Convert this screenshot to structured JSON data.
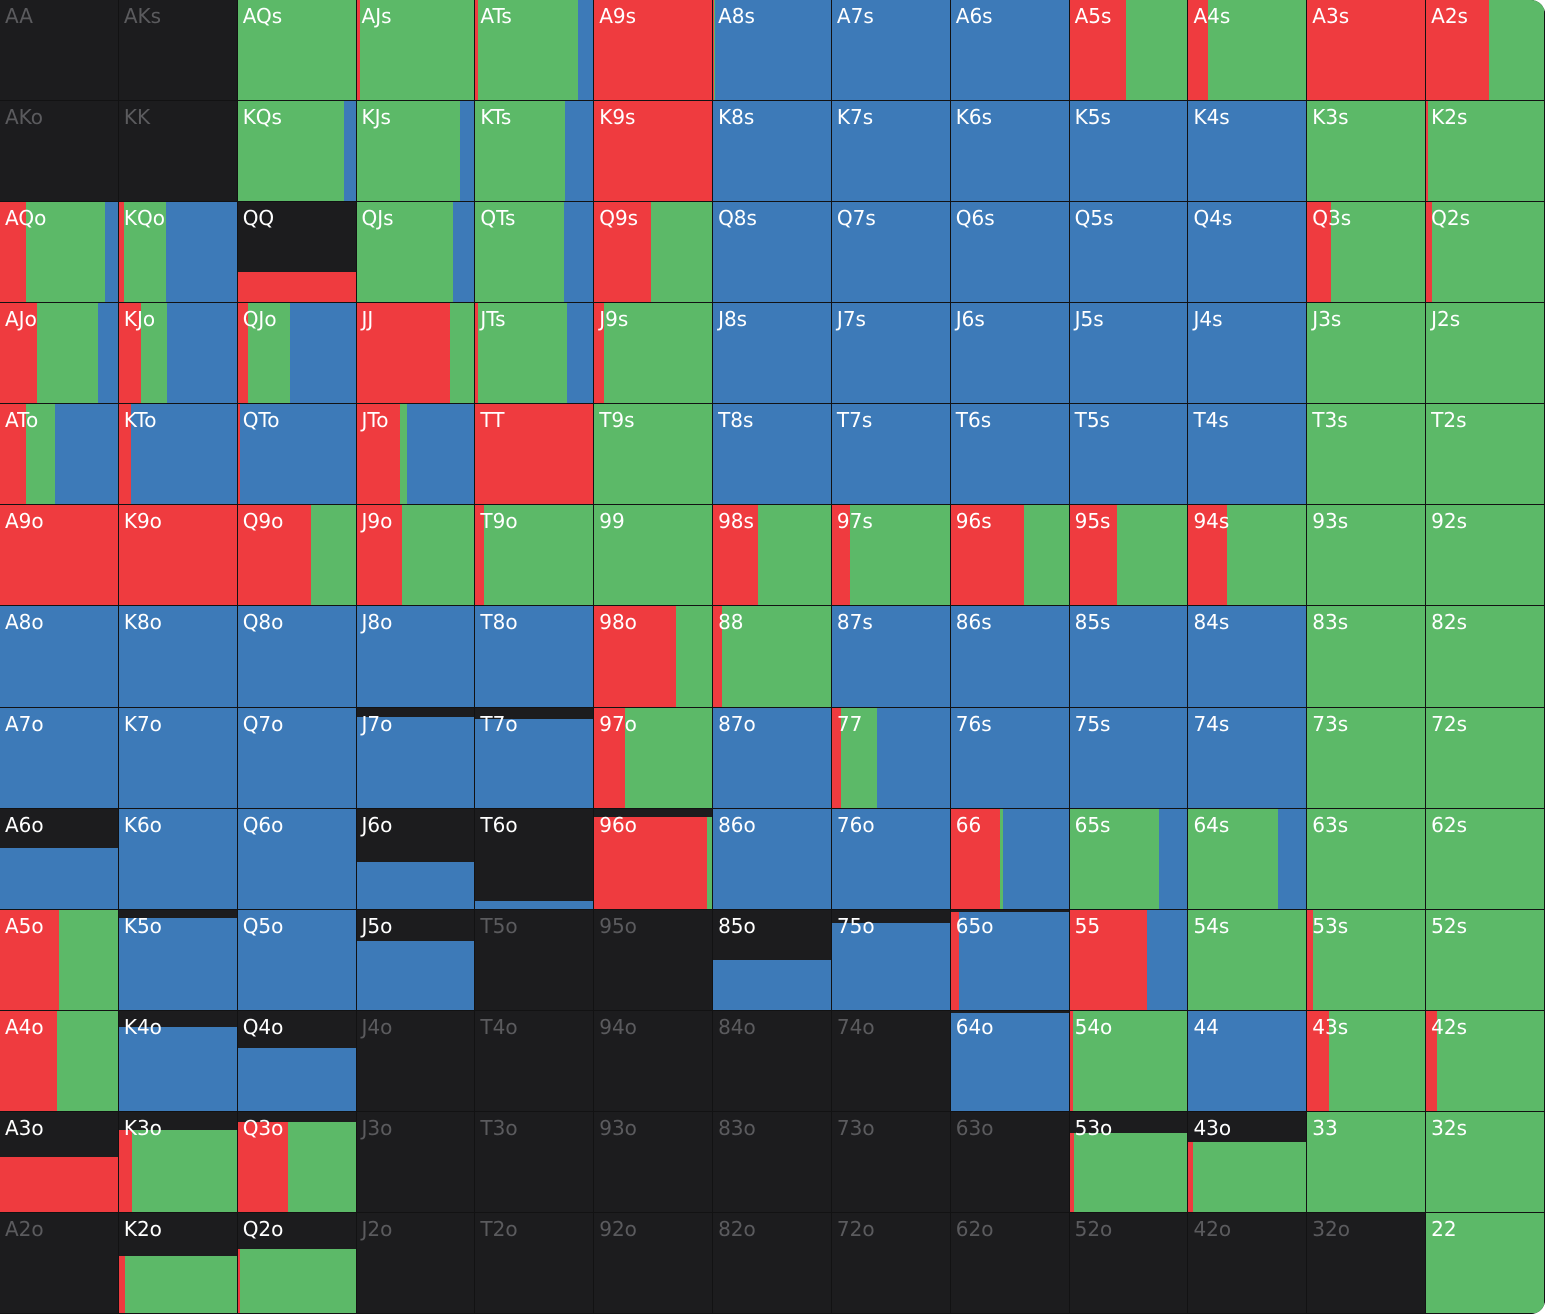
{
  "colors": {
    "empty": "#1c1c1e",
    "raise": "#ef3b3f",
    "call": "#5cb968",
    "fold": "#3d7ab8",
    "label": "#ffffff",
    "label_dim": "#5b5b5e"
  },
  "legend": "each cell fill: height = share of combos played; split into raise (red) / call (green) / fold (blue) fractions",
  "rows": [
    [
      {
        "hand": "AA",
        "h": 0,
        "r": 0,
        "c": 0,
        "f": 0
      },
      {
        "hand": "AKs",
        "h": 0,
        "r": 0,
        "c": 0,
        "f": 0
      },
      {
        "hand": "AQs",
        "h": 1,
        "r": 0,
        "c": 1,
        "f": 0
      },
      {
        "hand": "AJs",
        "h": 1,
        "r": 0.03,
        "c": 0.97,
        "f": 0
      },
      {
        "hand": "ATs",
        "h": 1,
        "r": 0.02,
        "c": 0.85,
        "f": 0.13
      },
      {
        "hand": "A9s",
        "h": 1,
        "r": 1,
        "c": 0,
        "f": 0
      },
      {
        "hand": "A8s",
        "h": 1,
        "r": 0.01,
        "c": 0.01,
        "f": 0.98
      },
      {
        "hand": "A7s",
        "h": 1,
        "r": 0,
        "c": 0,
        "f": 1
      },
      {
        "hand": "A6s",
        "h": 1,
        "r": 0,
        "c": 0,
        "f": 1
      },
      {
        "hand": "A5s",
        "h": 1,
        "r": 0.48,
        "c": 0.52,
        "f": 0
      },
      {
        "hand": "A4s",
        "h": 1,
        "r": 0.17,
        "c": 0.83,
        "f": 0
      },
      {
        "hand": "A3s",
        "h": 1,
        "r": 1,
        "c": 0,
        "f": 0
      },
      {
        "hand": "A2s",
        "h": 1,
        "r": 0.53,
        "c": 0.47,
        "f": 0
      }
    ],
    [
      {
        "hand": "AKo",
        "h": 0,
        "r": 0,
        "c": 0,
        "f": 0
      },
      {
        "hand": "KK",
        "h": 0,
        "r": 0,
        "c": 0,
        "f": 0
      },
      {
        "hand": "KQs",
        "h": 1,
        "r": 0,
        "c": 0.9,
        "f": 0.1
      },
      {
        "hand": "KJs",
        "h": 1,
        "r": 0,
        "c": 0.88,
        "f": 0.12
      },
      {
        "hand": "KTs",
        "h": 1,
        "r": 0,
        "c": 0.76,
        "f": 0.24
      },
      {
        "hand": "K9s",
        "h": 1,
        "r": 1,
        "c": 0,
        "f": 0
      },
      {
        "hand": "K8s",
        "h": 1,
        "r": 0,
        "c": 0,
        "f": 1
      },
      {
        "hand": "K7s",
        "h": 1,
        "r": 0,
        "c": 0,
        "f": 1
      },
      {
        "hand": "K6s",
        "h": 1,
        "r": 0,
        "c": 0,
        "f": 1
      },
      {
        "hand": "K5s",
        "h": 1,
        "r": 0,
        "c": 0,
        "f": 1
      },
      {
        "hand": "K4s",
        "h": 1,
        "r": 0,
        "c": 0,
        "f": 1
      },
      {
        "hand": "K3s",
        "h": 1,
        "r": 0,
        "c": 1,
        "f": 0
      },
      {
        "hand": "K2s",
        "h": 1,
        "r": 0.02,
        "c": 0.98,
        "f": 0
      }
    ],
    [
      {
        "hand": "AQo",
        "h": 1,
        "r": 0.22,
        "c": 0.67,
        "f": 0.11
      },
      {
        "hand": "KQo",
        "h": 1,
        "r": 0.04,
        "c": 0.36,
        "f": 0.6
      },
      {
        "hand": "QQ",
        "h": 0.3,
        "r": 1,
        "c": 0,
        "f": 0
      },
      {
        "hand": "QJs",
        "h": 1,
        "r": 0,
        "c": 0.82,
        "f": 0.18
      },
      {
        "hand": "QTs",
        "h": 1,
        "r": 0,
        "c": 0.75,
        "f": 0.25
      },
      {
        "hand": "Q9s",
        "h": 1,
        "r": 0.48,
        "c": 0.52,
        "f": 0
      },
      {
        "hand": "Q8s",
        "h": 1,
        "r": 0,
        "c": 0,
        "f": 1
      },
      {
        "hand": "Q7s",
        "h": 1,
        "r": 0,
        "c": 0,
        "f": 1
      },
      {
        "hand": "Q6s",
        "h": 1,
        "r": 0,
        "c": 0,
        "f": 1
      },
      {
        "hand": "Q5s",
        "h": 1,
        "r": 0,
        "c": 0,
        "f": 1
      },
      {
        "hand": "Q4s",
        "h": 1,
        "r": 0,
        "c": 0,
        "f": 1
      },
      {
        "hand": "Q3s",
        "h": 1,
        "r": 0.2,
        "c": 0.8,
        "f": 0
      },
      {
        "hand": "Q2s",
        "h": 1,
        "r": 0.05,
        "c": 0.95,
        "f": 0
      }
    ],
    [
      {
        "hand": "AJo",
        "h": 1,
        "r": 0.31,
        "c": 0.52,
        "f": 0.17
      },
      {
        "hand": "KJo",
        "h": 1,
        "r": 0.19,
        "c": 0.22,
        "f": 0.59
      },
      {
        "hand": "QJo",
        "h": 1,
        "r": 0.09,
        "c": 0.35,
        "f": 0.56
      },
      {
        "hand": "JJ",
        "h": 1,
        "r": 0.79,
        "c": 0.21,
        "f": 0
      },
      {
        "hand": "JTs",
        "h": 1,
        "r": 0.02,
        "c": 0.76,
        "f": 0.22
      },
      {
        "hand": "J9s",
        "h": 1,
        "r": 0.08,
        "c": 0.92,
        "f": 0
      },
      {
        "hand": "J8s",
        "h": 1,
        "r": 0,
        "c": 0,
        "f": 1
      },
      {
        "hand": "J7s",
        "h": 1,
        "r": 0,
        "c": 0,
        "f": 1
      },
      {
        "hand": "J6s",
        "h": 1,
        "r": 0,
        "c": 0,
        "f": 1
      },
      {
        "hand": "J5s",
        "h": 1,
        "r": 0,
        "c": 0,
        "f": 1
      },
      {
        "hand": "J4s",
        "h": 1,
        "r": 0,
        "c": 0,
        "f": 1
      },
      {
        "hand": "J3s",
        "h": 1,
        "r": 0,
        "c": 1,
        "f": 0
      },
      {
        "hand": "J2s",
        "h": 1,
        "r": 0,
        "c": 1,
        "f": 0
      }
    ],
    [
      {
        "hand": "ATo",
        "h": 1,
        "r": 0.22,
        "c": 0.25,
        "f": 0.53
      },
      {
        "hand": "KTo",
        "h": 1,
        "r": 0.1,
        "c": 0,
        "f": 0.9
      },
      {
        "hand": "QTo",
        "h": 1,
        "r": 0.02,
        "c": 0,
        "f": 0.98
      },
      {
        "hand": "JTo",
        "h": 1,
        "r": 0.37,
        "c": 0.06,
        "f": 0.57
      },
      {
        "hand": "TT",
        "h": 1,
        "r": 1,
        "c": 0,
        "f": 0
      },
      {
        "hand": "T9s",
        "h": 1,
        "r": 0,
        "c": 1,
        "f": 0
      },
      {
        "hand": "T8s",
        "h": 1,
        "r": 0,
        "c": 0,
        "f": 1
      },
      {
        "hand": "T7s",
        "h": 1,
        "r": 0,
        "c": 0,
        "f": 1
      },
      {
        "hand": "T6s",
        "h": 1,
        "r": 0,
        "c": 0,
        "f": 1
      },
      {
        "hand": "T5s",
        "h": 1,
        "r": 0,
        "c": 0,
        "f": 1
      },
      {
        "hand": "T4s",
        "h": 1,
        "r": 0,
        "c": 0,
        "f": 1
      },
      {
        "hand": "T3s",
        "h": 1,
        "r": 0,
        "c": 1,
        "f": 0
      },
      {
        "hand": "T2s",
        "h": 1,
        "r": 0,
        "c": 1,
        "f": 0
      }
    ],
    [
      {
        "hand": "A9o",
        "h": 1,
        "r": 1,
        "c": 0,
        "f": 0
      },
      {
        "hand": "K9o",
        "h": 1,
        "r": 1,
        "c": 0,
        "f": 0
      },
      {
        "hand": "Q9o",
        "h": 1,
        "r": 0.62,
        "c": 0.38,
        "f": 0
      },
      {
        "hand": "J9o",
        "h": 1,
        "r": 0.39,
        "c": 0.61,
        "f": 0
      },
      {
        "hand": "T9o",
        "h": 1,
        "r": 0.07,
        "c": 0.93,
        "f": 0
      },
      {
        "hand": "99",
        "h": 1,
        "r": 0,
        "c": 1,
        "f": 0
      },
      {
        "hand": "98s",
        "h": 1,
        "r": 0.38,
        "c": 0.62,
        "f": 0
      },
      {
        "hand": "97s",
        "h": 1,
        "r": 0.15,
        "c": 0.85,
        "f": 0
      },
      {
        "hand": "96s",
        "h": 1,
        "r": 0.62,
        "c": 0.38,
        "f": 0
      },
      {
        "hand": "95s",
        "h": 1,
        "r": 0.4,
        "c": 0.6,
        "f": 0
      },
      {
        "hand": "94s",
        "h": 1,
        "r": 0.33,
        "c": 0.67,
        "f": 0
      },
      {
        "hand": "93s",
        "h": 1,
        "r": 0,
        "c": 1,
        "f": 0
      },
      {
        "hand": "92s",
        "h": 1,
        "r": 0,
        "c": 1,
        "f": 0
      }
    ],
    [
      {
        "hand": "A8o",
        "h": 1,
        "r": 0,
        "c": 0,
        "f": 1
      },
      {
        "hand": "K8o",
        "h": 1,
        "r": 0,
        "c": 0,
        "f": 1
      },
      {
        "hand": "Q8o",
        "h": 1,
        "r": 0,
        "c": 0,
        "f": 1
      },
      {
        "hand": "J8o",
        "h": 1,
        "r": 0,
        "c": 0,
        "f": 1
      },
      {
        "hand": "T8o",
        "h": 1,
        "r": 0,
        "c": 0,
        "f": 1
      },
      {
        "hand": "98o",
        "h": 1,
        "r": 0.69,
        "c": 0.31,
        "f": 0
      },
      {
        "hand": "88",
        "h": 1,
        "r": 0.08,
        "c": 0.92,
        "f": 0
      },
      {
        "hand": "87s",
        "h": 1,
        "r": 0,
        "c": 0,
        "f": 1
      },
      {
        "hand": "86s",
        "h": 1,
        "r": 0,
        "c": 0,
        "f": 1
      },
      {
        "hand": "85s",
        "h": 1,
        "r": 0,
        "c": 0,
        "f": 1
      },
      {
        "hand": "84s",
        "h": 1,
        "r": 0,
        "c": 0,
        "f": 1
      },
      {
        "hand": "83s",
        "h": 1,
        "r": 0,
        "c": 1,
        "f": 0
      },
      {
        "hand": "82s",
        "h": 1,
        "r": 0,
        "c": 1,
        "f": 0
      }
    ],
    [
      {
        "hand": "A7o",
        "h": 1,
        "r": 0,
        "c": 0,
        "f": 1
      },
      {
        "hand": "K7o",
        "h": 1,
        "r": 0,
        "c": 0,
        "f": 1
      },
      {
        "hand": "Q7o",
        "h": 1,
        "r": 0,
        "c": 0,
        "f": 1
      },
      {
        "hand": "J7o",
        "h": 0.91,
        "r": 0,
        "c": 0,
        "f": 1
      },
      {
        "hand": "T7o",
        "h": 0.89,
        "r": 0,
        "c": 0,
        "f": 1
      },
      {
        "hand": "97o",
        "h": 1,
        "r": 0.26,
        "c": 0.74,
        "f": 0
      },
      {
        "hand": "87o",
        "h": 1,
        "r": 0,
        "c": 0,
        "f": 1
      },
      {
        "hand": "77",
        "h": 1,
        "r": 0.08,
        "c": 0.3,
        "f": 0.62
      },
      {
        "hand": "76s",
        "h": 1,
        "r": 0,
        "c": 0,
        "f": 1
      },
      {
        "hand": "75s",
        "h": 1,
        "r": 0,
        "c": 0,
        "f": 1
      },
      {
        "hand": "74s",
        "h": 1,
        "r": 0,
        "c": 0,
        "f": 1
      },
      {
        "hand": "73s",
        "h": 1,
        "r": 0,
        "c": 1,
        "f": 0
      },
      {
        "hand": "72s",
        "h": 1,
        "r": 0,
        "c": 1,
        "f": 0
      }
    ],
    [
      {
        "hand": "A6o",
        "h": 0.61,
        "r": 0,
        "c": 0,
        "f": 1
      },
      {
        "hand": "K6o",
        "h": 1,
        "r": 0,
        "c": 0,
        "f": 1
      },
      {
        "hand": "Q6o",
        "h": 1,
        "r": 0,
        "c": 0,
        "f": 1
      },
      {
        "hand": "J6o",
        "h": 0.47,
        "r": 0,
        "c": 0,
        "f": 1
      },
      {
        "hand": "T6o",
        "h": 0.08,
        "r": 0,
        "c": 0,
        "f": 1
      },
      {
        "hand": "96o",
        "h": 0.92,
        "r": 0.96,
        "c": 0.04,
        "f": 0
      },
      {
        "hand": "86o",
        "h": 1,
        "r": 0,
        "c": 0,
        "f": 1
      },
      {
        "hand": "76o",
        "h": 1,
        "r": 0,
        "c": 0,
        "f": 1
      },
      {
        "hand": "66",
        "h": 1,
        "r": 0.42,
        "c": 0.02,
        "f": 0.56
      },
      {
        "hand": "65s",
        "h": 1,
        "r": 0,
        "c": 0.76,
        "f": 0.24
      },
      {
        "hand": "64s",
        "h": 1,
        "r": 0,
        "c": 0.76,
        "f": 0.24
      },
      {
        "hand": "63s",
        "h": 1,
        "r": 0,
        "c": 1,
        "f": 0
      },
      {
        "hand": "62s",
        "h": 1,
        "r": 0,
        "c": 1,
        "f": 0
      }
    ],
    [
      {
        "hand": "A5o",
        "h": 1,
        "r": 0.5,
        "c": 0.5,
        "f": 0
      },
      {
        "hand": "K5o",
        "h": 0.92,
        "r": 0,
        "c": 0,
        "f": 1
      },
      {
        "hand": "Q5o",
        "h": 1,
        "r": 0,
        "c": 0,
        "f": 1
      },
      {
        "hand": "J5o",
        "h": 0.69,
        "r": 0,
        "c": 0,
        "f": 1
      },
      {
        "hand": "T5o",
        "h": 0,
        "r": 0,
        "c": 0,
        "f": 0
      },
      {
        "hand": "95o",
        "h": 0,
        "r": 0,
        "c": 0,
        "f": 0
      },
      {
        "hand": "85o",
        "h": 0.5,
        "r": 0,
        "c": 0,
        "f": 1
      },
      {
        "hand": "75o",
        "h": 0.87,
        "r": 0,
        "c": 0,
        "f": 1
      },
      {
        "hand": "65o",
        "h": 0.98,
        "r": 0.07,
        "c": 0,
        "f": 0.93
      },
      {
        "hand": "55",
        "h": 1,
        "r": 0.66,
        "c": 0,
        "f": 0.34
      },
      {
        "hand": "54s",
        "h": 1,
        "r": 0,
        "c": 1,
        "f": 0
      },
      {
        "hand": "53s",
        "h": 1,
        "r": 0.05,
        "c": 0.95,
        "f": 0
      },
      {
        "hand": "52s",
        "h": 1,
        "r": 0,
        "c": 1,
        "f": 0
      }
    ],
    [
      {
        "hand": "A4o",
        "h": 1,
        "r": 0.48,
        "c": 0.52,
        "f": 0
      },
      {
        "hand": "K4o",
        "h": 0.84,
        "r": 0,
        "c": 0,
        "f": 1
      },
      {
        "hand": "Q4o",
        "h": 0.63,
        "r": 0,
        "c": 0,
        "f": 1
      },
      {
        "hand": "J4o",
        "h": 0,
        "r": 0,
        "c": 0,
        "f": 0
      },
      {
        "hand": "T4o",
        "h": 0,
        "r": 0,
        "c": 0,
        "f": 0
      },
      {
        "hand": "94o",
        "h": 0,
        "r": 0,
        "c": 0,
        "f": 0
      },
      {
        "hand": "84o",
        "h": 0,
        "r": 0,
        "c": 0,
        "f": 0
      },
      {
        "hand": "74o",
        "h": 0,
        "r": 0,
        "c": 0,
        "f": 0
      },
      {
        "hand": "64o",
        "h": 0.98,
        "r": 0,
        "c": 0,
        "f": 1
      },
      {
        "hand": "54o",
        "h": 1,
        "r": 0.03,
        "c": 0.97,
        "f": 0
      },
      {
        "hand": "44",
        "h": 1,
        "r": 0,
        "c": 0,
        "f": 1
      },
      {
        "hand": "43s",
        "h": 1,
        "r": 0.18,
        "c": 0.82,
        "f": 0
      },
      {
        "hand": "42s",
        "h": 1,
        "r": 0.09,
        "c": 0.91,
        "f": 0
      }
    ],
    [
      {
        "hand": "A3o",
        "h": 0.55,
        "r": 1,
        "c": 0,
        "f": 0
      },
      {
        "hand": "K3o",
        "h": 0.82,
        "r": 0.11,
        "c": 0.89,
        "f": 0
      },
      {
        "hand": "Q3o",
        "h": 0.9,
        "r": 0.43,
        "c": 0.57,
        "f": 0
      },
      {
        "hand": "J3o",
        "h": 0,
        "r": 0,
        "c": 0,
        "f": 0
      },
      {
        "hand": "T3o",
        "h": 0,
        "r": 0,
        "c": 0,
        "f": 0
      },
      {
        "hand": "93o",
        "h": 0,
        "r": 0,
        "c": 0,
        "f": 0
      },
      {
        "hand": "83o",
        "h": 0,
        "r": 0,
        "c": 0,
        "f": 0
      },
      {
        "hand": "73o",
        "h": 0,
        "r": 0,
        "c": 0,
        "f": 0
      },
      {
        "hand": "63o",
        "h": 0,
        "r": 0,
        "c": 0,
        "f": 0
      },
      {
        "hand": "53o",
        "h": 0.79,
        "r": 0.04,
        "c": 0.96,
        "f": 0
      },
      {
        "hand": "43o",
        "h": 0.7,
        "r": 0.04,
        "c": 0.96,
        "f": 0
      },
      {
        "hand": "33",
        "h": 1,
        "r": 0,
        "c": 1,
        "f": 0
      },
      {
        "hand": "32s",
        "h": 1,
        "r": 0,
        "c": 1,
        "f": 0
      }
    ],
    [
      {
        "hand": "A2o",
        "h": 0,
        "r": 0,
        "c": 0,
        "f": 0
      },
      {
        "hand": "K2o",
        "h": 0.57,
        "r": 0.05,
        "c": 0.95,
        "f": 0
      },
      {
        "hand": "Q2o",
        "h": 0.64,
        "r": 0.02,
        "c": 0.98,
        "f": 0
      },
      {
        "hand": "J2o",
        "h": 0,
        "r": 0,
        "c": 0,
        "f": 0
      },
      {
        "hand": "T2o",
        "h": 0,
        "r": 0,
        "c": 0,
        "f": 0
      },
      {
        "hand": "92o",
        "h": 0,
        "r": 0,
        "c": 0,
        "f": 0
      },
      {
        "hand": "82o",
        "h": 0,
        "r": 0,
        "c": 0,
        "f": 0
      },
      {
        "hand": "72o",
        "h": 0,
        "r": 0,
        "c": 0,
        "f": 0
      },
      {
        "hand": "62o",
        "h": 0,
        "r": 0,
        "c": 0,
        "f": 0
      },
      {
        "hand": "52o",
        "h": 0,
        "r": 0,
        "c": 0,
        "f": 0
      },
      {
        "hand": "42o",
        "h": 0,
        "r": 0,
        "c": 0,
        "f": 0
      },
      {
        "hand": "32o",
        "h": 0,
        "r": 0,
        "c": 0,
        "f": 0
      },
      {
        "hand": "22",
        "h": 1,
        "r": 0,
        "c": 1,
        "f": 0
      }
    ]
  ]
}
